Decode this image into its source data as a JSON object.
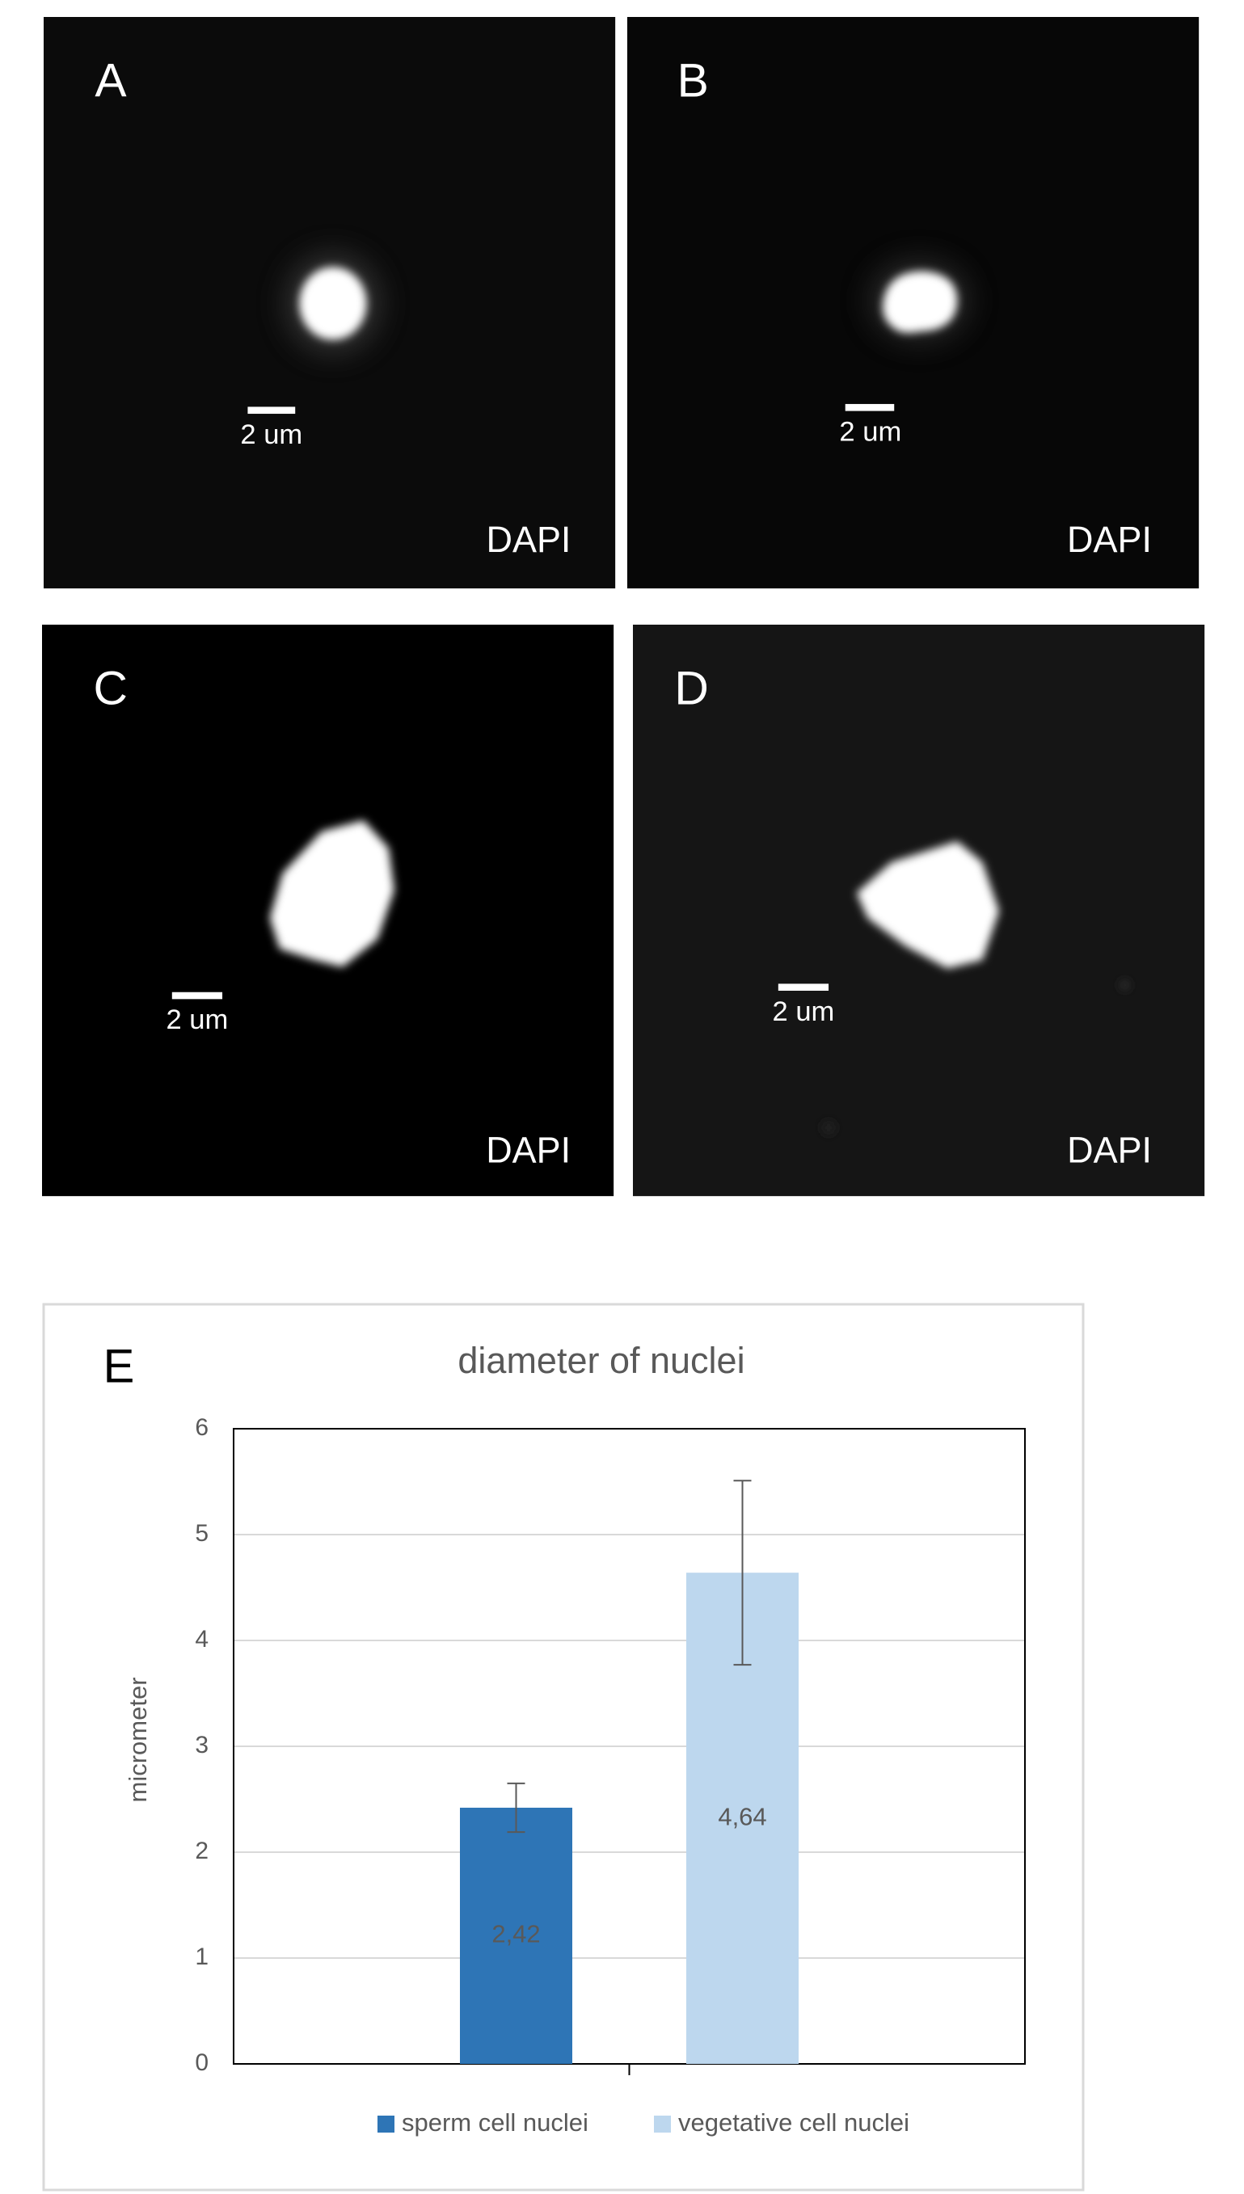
{
  "panels": [
    {
      "label": "A",
      "scale_bar": "2 um",
      "stain": "DAPI"
    },
    {
      "label": "B",
      "scale_bar": "2 um",
      "stain": "DAPI"
    },
    {
      "label": "C",
      "scale_bar": "2 um",
      "stain": "DAPI"
    },
    {
      "label": "D",
      "scale_bar": "2 um",
      "stain": "DAPI"
    }
  ],
  "chart_data": {
    "type": "bar",
    "panel_label": "E",
    "title": "diameter of nuclei",
    "y_label": "micrometer",
    "ylim": [
      0,
      6
    ],
    "yticks": [
      0,
      1,
      2,
      3,
      4,
      5,
      6
    ],
    "grid": true,
    "series": [
      {
        "name": "sperm cell nuclei",
        "color": "#2e75b6",
        "values": [
          2.42
        ],
        "value_labels": [
          "2,42"
        ],
        "errors": [
          0.23
        ]
      },
      {
        "name": "vegetative cell nuclei",
        "color": "#bdd7ee",
        "values": [
          4.64
        ],
        "value_labels": [
          "4,64"
        ],
        "errors": [
          0.87
        ]
      }
    ]
  }
}
